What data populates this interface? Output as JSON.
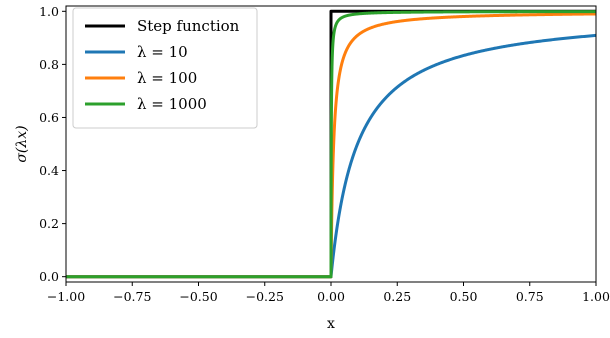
{
  "chart_data": {
    "type": "line",
    "xlabel": "x",
    "ylabel": "σ(λx)",
    "xlim": [
      -1.0,
      1.0
    ],
    "ylim": [
      -0.02,
      1.02
    ],
    "x_ticks": [
      -1.0,
      -0.75,
      -0.5,
      -0.25,
      0.0,
      0.25,
      0.5,
      0.75,
      1.0
    ],
    "x_tick_labels": [
      "−1.00",
      "−0.75",
      "−0.50",
      "−0.25",
      "0.00",
      "0.25",
      "0.50",
      "0.75",
      "1.00"
    ],
    "y_ticks": [
      0.0,
      0.2,
      0.4,
      0.6,
      0.8,
      1.0
    ],
    "y_tick_labels": [
      "0.0",
      "0.2",
      "0.4",
      "0.6",
      "0.8",
      "1.0"
    ],
    "grid": false,
    "legend_position": "top-left",
    "series": [
      {
        "name": "Step function",
        "color": "#000000",
        "function": "step"
      },
      {
        "name": "λ = 10",
        "color": "#1f77b4",
        "function": "λx/(1+λx) for x>0, else 0",
        "lambda": 10
      },
      {
        "name": "λ = 100",
        "color": "#ff7f0e",
        "function": "λx/(1+λx) for x>0, else 0",
        "lambda": 100
      },
      {
        "name": "λ = 1000",
        "color": "#2ca02c",
        "function": "λx/(1+λx) for x>0, else 0",
        "lambda": 1000
      }
    ]
  }
}
